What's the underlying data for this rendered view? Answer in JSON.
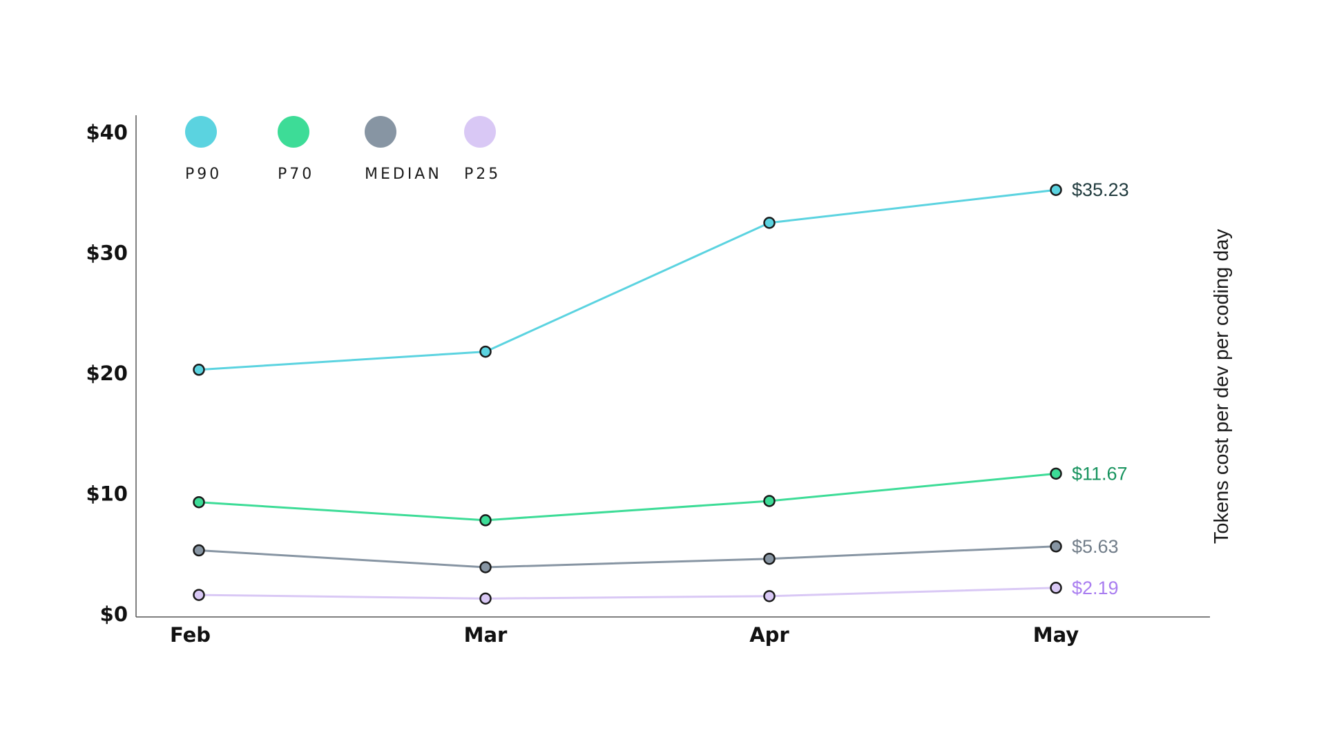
{
  "chart_data": {
    "type": "line",
    "categories": [
      "Feb",
      "Mar",
      "Apr",
      "May"
    ],
    "ylabel": "Tokens cost per dev per coding day",
    "ylim": [
      0,
      40
    ],
    "yticks": [
      {
        "value": 0,
        "label": "$0"
      },
      {
        "value": 10,
        "label": "$10"
      },
      {
        "value": 20,
        "label": "$20"
      },
      {
        "value": 30,
        "label": "$30"
      },
      {
        "value": 40,
        "label": "$40"
      }
    ],
    "legend_position": "top-left",
    "grid": false,
    "series": [
      {
        "name": "P90",
        "color": "#5bd3e0",
        "label_color": "#1f3a3d",
        "values": [
          20.3,
          21.8,
          32.5,
          35.23
        ],
        "end_label": "$35.23"
      },
      {
        "name": "P70",
        "color": "#3ddc97",
        "label_color": "#17935e",
        "values": [
          9.3,
          7.8,
          9.4,
          11.67
        ],
        "end_label": "$11.67"
      },
      {
        "name": "MEDIAN",
        "color": "#8795a3",
        "label_color": "#717d89",
        "values": [
          5.3,
          3.9,
          4.6,
          5.63
        ],
        "end_label": "$5.63"
      },
      {
        "name": "P25",
        "color": "#d9c8f5",
        "label_color": "#a97df0",
        "values": [
          1.6,
          1.3,
          1.5,
          2.19
        ],
        "end_label": "$2.19"
      }
    ]
  }
}
